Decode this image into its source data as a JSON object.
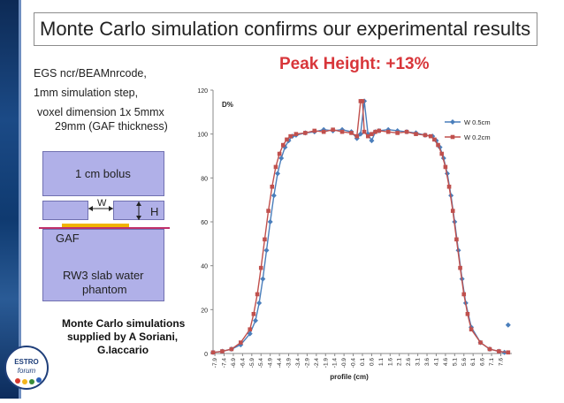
{
  "slide": {
    "title": "Monte Carlo simulation confirms our experimental results",
    "peak_height": "Peak Height: +13%",
    "notes": [
      "EGS ncr/BEAMnrcode,",
      "1mm simulation step,",
      "voxel dimension 1x 5mmx",
      "29mm (GAF thickness)"
    ],
    "credit_lines": [
      "Monte Carlo simulations",
      "supplied by A Soriani,",
      "G.Iaccario"
    ],
    "logo_text": [
      "ESTRO",
      "forum"
    ]
  },
  "diagram": {
    "bolus_label": "1 cm bolus",
    "w_label": "W",
    "h_label": "H",
    "gaf_label": "GAF",
    "phantom_label": [
      "RW3 slab water",
      "phantom"
    ]
  },
  "chart_data": {
    "type": "line",
    "ylabel": "D%",
    "xlabel": "profile (cm)",
    "ylim": [
      0,
      120
    ],
    "yticks": [
      0,
      20,
      40,
      60,
      80,
      100,
      120
    ],
    "xticks": [
      "-7.9",
      "-7.4",
      "-6.9",
      "-6.4",
      "-5.9",
      "-5.4",
      "-4.9",
      "-4.4",
      "-3.9",
      "-3.4",
      "-2.9",
      "-2.4",
      "-1.9",
      "-1.4",
      "-0.9",
      "-0.4",
      "0.1",
      "0.6",
      "1.1",
      "1.6",
      "2.1",
      "2.6",
      "3.1",
      "3.6",
      "4.1",
      "4.6",
      "5.1",
      "5.6",
      "6.1",
      "6.6",
      "7.1",
      "7.6"
    ],
    "legend_position": "top-right",
    "series": [
      {
        "name": "W 0.5cm",
        "color": "#4a7ebb",
        "marker": "diamond",
        "x": [
          -8.0,
          -7.5,
          -7.0,
          -6.5,
          -6.0,
          -5.7,
          -5.5,
          -5.3,
          -5.1,
          -4.9,
          -4.7,
          -4.5,
          -4.3,
          -4.1,
          -3.9,
          -3.7,
          -3.5,
          -3.0,
          -2.5,
          -2.0,
          -1.5,
          -1.0,
          -0.5,
          -0.2,
          0.0,
          0.2,
          0.4,
          0.6,
          0.8,
          1.0,
          1.5,
          2.0,
          2.5,
          3.0,
          3.5,
          3.9,
          4.1,
          4.3,
          4.5,
          4.7,
          4.9,
          5.1,
          5.3,
          5.5,
          5.7,
          6.0,
          6.5,
          7.0,
          7.5,
          7.8,
          8.0
        ],
        "y": [
          0.5,
          1,
          2,
          4,
          9,
          15,
          23,
          34,
          47,
          60,
          72,
          82,
          89,
          94,
          97,
          99,
          99.5,
          100.5,
          101,
          102,
          101.5,
          102,
          101,
          98,
          100,
          115,
          100,
          97,
          101,
          101.5,
          102,
          101.5,
          101,
          100.5,
          99.5,
          99,
          97,
          94,
          89,
          82,
          72,
          60,
          47,
          34,
          23,
          12,
          5,
          2,
          1,
          0.5,
          13
        ]
      },
      {
        "name": "W 0.2cm",
        "color": "#c0504d",
        "marker": "square",
        "x": [
          -8.0,
          -7.5,
          -7.0,
          -6.5,
          -6.0,
          -5.8,
          -5.6,
          -5.4,
          -5.2,
          -5.0,
          -4.8,
          -4.6,
          -4.4,
          -4.2,
          -4.0,
          -3.8,
          -3.5,
          -3.0,
          -2.5,
          -2.0,
          -1.5,
          -1.0,
          -0.5,
          -0.2,
          0.0,
          0.1,
          0.2,
          0.4,
          0.6,
          0.8,
          1.0,
          1.5,
          2.0,
          2.5,
          3.0,
          3.5,
          3.8,
          4.0,
          4.2,
          4.4,
          4.6,
          4.8,
          5.0,
          5.2,
          5.4,
          5.6,
          5.8,
          6.0,
          6.5,
          7.0,
          7.5,
          8.0
        ],
        "y": [
          0.5,
          1,
          2,
          5,
          11,
          18,
          27,
          39,
          52,
          65,
          76,
          85,
          91,
          95,
          97.5,
          99,
          100,
          100.5,
          101.5,
          101,
          102,
          101,
          100.5,
          99,
          115,
          115,
          101,
          99,
          100,
          101,
          101.5,
          101,
          100.5,
          101,
          100,
          99.5,
          99,
          97.5,
          95,
          91,
          85,
          76,
          65,
          52,
          39,
          27,
          18,
          11,
          5,
          2,
          1,
          0.5
        ]
      }
    ]
  }
}
